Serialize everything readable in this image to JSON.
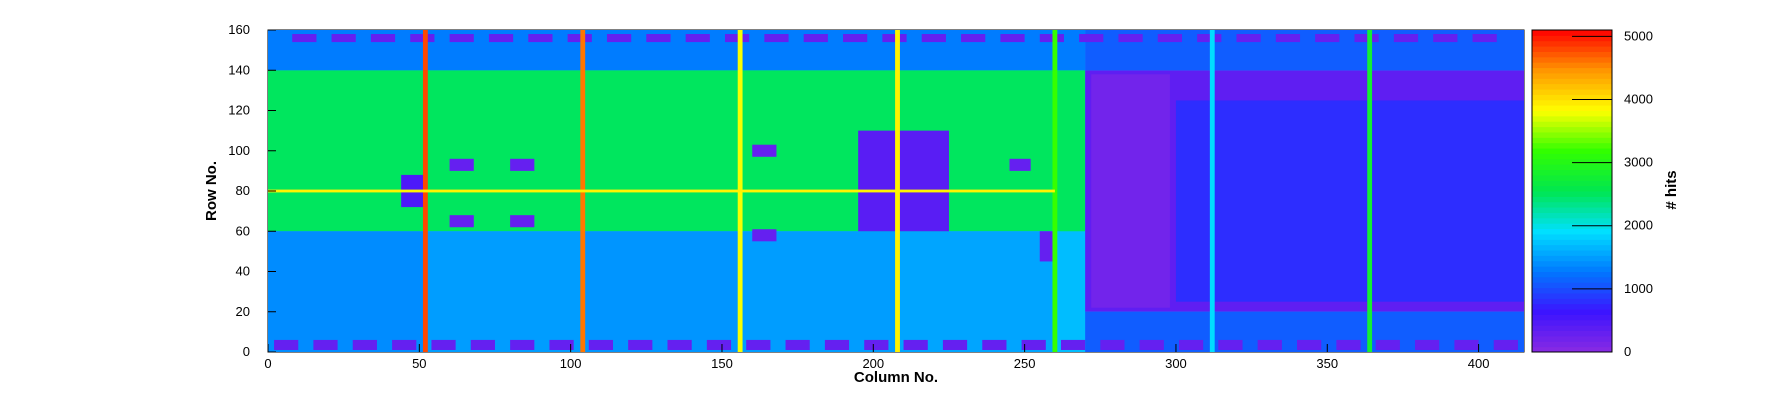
{
  "chart_data": {
    "type": "heatmap",
    "title": "",
    "xlabel": "Column No.",
    "ylabel": "Row No.",
    "zlabel": "# hits",
    "xlim": [
      0,
      415
    ],
    "ylim": [
      0,
      160
    ],
    "zlim": [
      0,
      5100
    ],
    "x_ticks": [
      0,
      50,
      100,
      150,
      200,
      250,
      300,
      350,
      400
    ],
    "y_ticks": [
      0,
      20,
      40,
      60,
      80,
      100,
      120,
      140,
      160
    ],
    "z_ticks": [
      0,
      1000,
      2000,
      3000,
      4000,
      5000
    ],
    "grid": false,
    "colormap": "rainbow",
    "colors": [
      "#8a2be2",
      "#3c14ff",
      "#0078ff",
      "#00e0ff",
      "#00e650",
      "#32ff00",
      "#ffff00",
      "#ff9600",
      "#ff0000"
    ],
    "regions": [
      {
        "x": [
          0,
          415
        ],
        "y": [
          0,
          160
        ],
        "value": 1700
      },
      {
        "x": [
          0,
          270
        ],
        "y": [
          60,
          140
        ],
        "value": 2500
      },
      {
        "x": [
          0,
          52
        ],
        "y": [
          0,
          60
        ],
        "value": 1400
      },
      {
        "x": [
          52,
          104
        ],
        "y": [
          0,
          60
        ],
        "value": 1500
      },
      {
        "x": [
          104,
          156
        ],
        "y": [
          0,
          60
        ],
        "value": 1450
      },
      {
        "x": [
          156,
          208
        ],
        "y": [
          0,
          60
        ],
        "value": 1500
      },
      {
        "x": [
          208,
          260
        ],
        "y": [
          0,
          60
        ],
        "value": 1550
      },
      {
        "x": [
          0,
          270
        ],
        "y": [
          140,
          160
        ],
        "value": 1300
      },
      {
        "x": [
          270,
          415
        ],
        "y": [
          20,
          140
        ],
        "value": 350
      },
      {
        "x": [
          300,
          415
        ],
        "y": [
          25,
          125
        ],
        "value": 800
      },
      {
        "x": [
          272,
          298
        ],
        "y": [
          22,
          138
        ],
        "value": 200
      },
      {
        "x": [
          195,
          225
        ],
        "y": [
          60,
          110
        ],
        "value": 400
      },
      {
        "x": [
          270,
          415
        ],
        "y": [
          0,
          20
        ],
        "value": 1100
      },
      {
        "x": [
          270,
          415
        ],
        "y": [
          140,
          160
        ],
        "value": 1100
      }
    ],
    "lines_vertical": [
      {
        "x": 52,
        "value": 4800
      },
      {
        "x": 104,
        "value": 4600
      },
      {
        "x": 156,
        "value": 3800
      },
      {
        "x": 208,
        "value": 3900
      },
      {
        "x": 260,
        "value": 3200
      },
      {
        "x": 364,
        "value": 2800
      },
      {
        "x": 312,
        "value": 1900
      }
    ],
    "lines_horizontal": [
      {
        "y": 80,
        "x": [
          0,
          260
        ],
        "value": 3900
      }
    ],
    "blocks": [
      {
        "x": [
          44,
          52
        ],
        "y": [
          72,
          88
        ],
        "value": 500
      },
      {
        "x": [
          60,
          68
        ],
        "y": [
          90,
          96
        ],
        "value": 300
      },
      {
        "x": [
          60,
          68
        ],
        "y": [
          62,
          68
        ],
        "value": 300
      },
      {
        "x": [
          80,
          88
        ],
        "y": [
          90,
          96
        ],
        "value": 300
      },
      {
        "x": [
          80,
          88
        ],
        "y": [
          62,
          68
        ],
        "value": 300
      },
      {
        "x": [
          160,
          168
        ],
        "y": [
          97,
          103
        ],
        "value": 300
      },
      {
        "x": [
          160,
          168
        ],
        "y": [
          55,
          61
        ],
        "value": 300
      },
      {
        "x": [
          245,
          252
        ],
        "y": [
          90,
          96
        ],
        "value": 300
      },
      {
        "x": [
          255,
          260
        ],
        "y": [
          45,
          60
        ],
        "value": 300
      }
    ],
    "pad_rows": [
      {
        "y": [
          1,
          6
        ],
        "x_start": 2,
        "pitch": 13,
        "width": 8,
        "value": 300
      },
      {
        "y": [
          154,
          158
        ],
        "x_start": 8,
        "pitch": 13,
        "width": 8,
        "value": 300
      }
    ]
  }
}
